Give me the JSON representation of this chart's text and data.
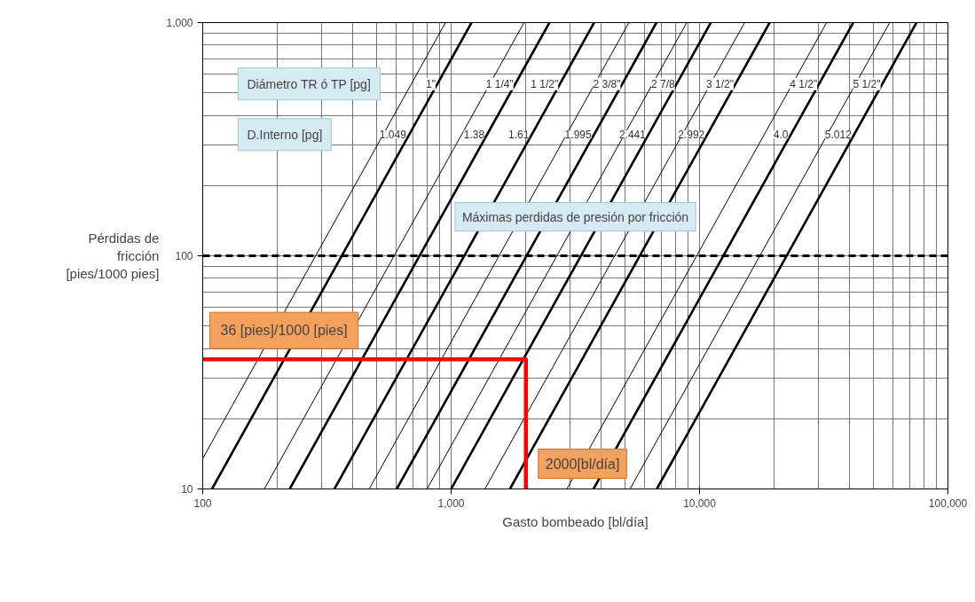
{
  "chart_data": {
    "type": "line",
    "xlabel": "Gasto bombeado [bl/día]",
    "ylabel": "Pérdidas de fricción [pies/1000 pies]",
    "log": "xy",
    "xlim": [
      100,
      100000
    ],
    "ylim": [
      10,
      1000
    ],
    "xticks": [
      100,
      {
        "value": 1000,
        "label": "1,000"
      },
      {
        "value": 10000,
        "label": "10,000"
      },
      {
        "value": 100000,
        "label": "100,000"
      }
    ],
    "yticks": [
      10,
      100,
      {
        "value": 1000,
        "label": "1,000"
      }
    ],
    "grid": true,
    "line_style": "solid",
    "marker": "none",
    "series": [
      {
        "color": "#000000",
        "x": [
          100,
          949
        ],
        "values": [
          13.5,
          1000
        ]
      },
      {
        "color": "#000000",
        "x": [
          177,
          1965
        ],
        "values": [
          10,
          1000
        ]
      },
      {
        "color": "#000000",
        "x": [
          468,
          5195
        ],
        "values": [
          10,
          1000
        ]
      },
      {
        "color": "#000000",
        "x": [
          800,
          8880
        ],
        "values": [
          10,
          1000
        ]
      },
      {
        "color": "#000000",
        "x": [
          1368,
          15190
        ],
        "values": [
          10,
          1000
        ]
      },
      {
        "color": "#000000",
        "x": [
          2924,
          32460
        ],
        "values": [
          10,
          1000
        ]
      },
      {
        "color": "#000000",
        "x": [
          5250,
          58280
        ],
        "values": [
          10,
          1000
        ]
      },
      {
        "name": "1\"",
        "color": "#000000",
        "x": [
          109,
          1208
        ],
        "values": [
          10,
          1000
        ]
      },
      {
        "name": "1 1/4\"",
        "color": "#000000",
        "x": [
          224,
          2487
        ],
        "values": [
          10,
          1000
        ]
      },
      {
        "name": "1 1/2\"",
        "color": "#000000",
        "x": [
          339,
          3763
        ],
        "values": [
          10,
          1000
        ]
      },
      {
        "name": "2 3/8\"",
        "color": "#000000",
        "x": [
          604,
          6705
        ],
        "values": [
          10,
          1000
        ]
      },
      {
        "name": "2 7/8",
        "color": "#000000",
        "x": [
          1000,
          11100
        ],
        "values": [
          10,
          1000
        ]
      },
      {
        "name": "3 1/2\"",
        "color": "#000000",
        "x": [
          1725,
          19150
        ],
        "values": [
          10,
          1000
        ]
      },
      {
        "name": "4 1/2\"",
        "color": "#000000",
        "x": [
          3743,
          41550
        ],
        "values": [
          10,
          1000
        ]
      },
      {
        "name": "5 1/2\"",
        "color": "#000000",
        "x": [
          6730,
          74700
        ],
        "values": [
          10,
          1000
        ]
      },
      {
        "color": "#ff0000",
        "x": [
          2000,
          2000,
          100
        ],
        "values": [
          10,
          36,
          36
        ]
      }
    ],
    "ref_lines": [
      {
        "axis": "y",
        "value": 100,
        "label": "Máximas perdidas de presión por fricción",
        "color": "#000000",
        "line_style": "dashed"
      }
    ],
    "annotations": [
      "Diámetro TR ó TP [pg]",
      "D.Interno [pg]",
      {
        "text": "1.049",
        "x": 676,
        "y": 331
      },
      {
        "text": "1.38",
        "x": 1396,
        "y": 331
      },
      {
        "text": "1.61",
        "x": 2112,
        "y": 331
      },
      {
        "text": "1.995",
        "x": 3763,
        "y": 331
      },
      {
        "text": "2.441",
        "x": 6230,
        "y": 331
      },
      {
        "text": "2.992",
        "x": 10750,
        "y": 331
      },
      {
        "text": "4.0",
        "x": 23320,
        "y": 331
      },
      {
        "text": "5.012",
        "x": 41930,
        "y": 331
      },
      {
        "text": "36 [pies]/1000 [pies]",
        "x": 100,
        "y": 36
      },
      {
        "text": "2000[bl/día]",
        "x": 2000,
        "y": 10
      }
    ]
  }
}
